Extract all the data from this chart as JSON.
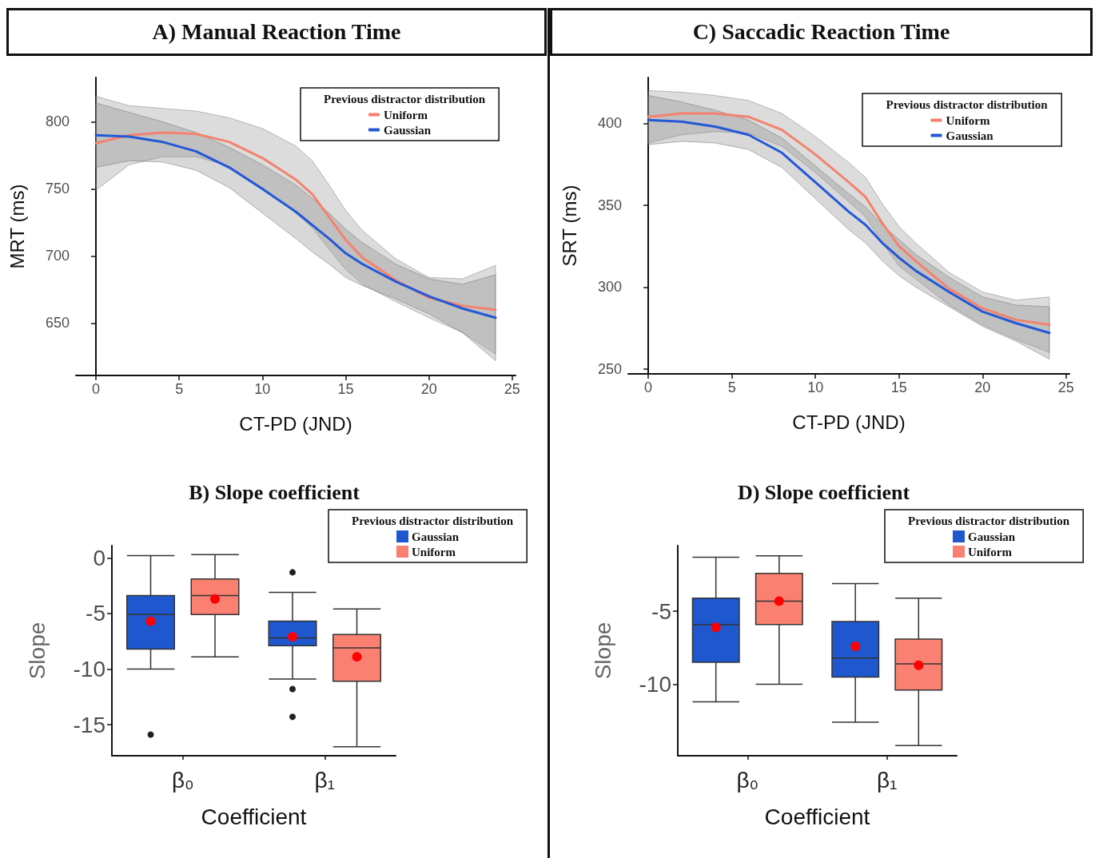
{
  "chart_data": [
    {
      "type": "line",
      "title": "A) Manual Reaction Time",
      "xlabel": "CT-PD (JND)",
      "ylabel": "MRT (ms)",
      "legend_title": "Previous distractor distribution",
      "legend": "top right",
      "x": [
        0,
        2,
        4,
        6,
        8,
        10,
        12,
        13,
        14,
        15,
        16,
        18,
        20,
        22,
        24
      ],
      "xlim": [
        -1.2,
        25.2
      ],
      "xticks": [
        0,
        5,
        10,
        15,
        20,
        25
      ],
      "ylim": [
        611,
        833
      ],
      "yticks": [
        650,
        700,
        750,
        800
      ],
      "series": [
        {
          "name": "Uniform",
          "color": "#f4826e",
          "values": [
            784,
            790,
            792,
            791,
            785,
            773,
            757,
            746,
            729,
            712,
            699,
            682,
            669,
            663,
            660
          ],
          "upper": [
            819,
            812,
            810,
            808,
            803,
            795,
            782,
            771,
            753,
            734,
            719,
            698,
            684,
            683,
            693
          ],
          "lower": [
            749,
            768,
            774,
            774,
            767,
            751,
            732,
            721,
            705,
            690,
            679,
            666,
            654,
            643,
            627
          ]
        },
        {
          "name": "Gaussian",
          "color": "#2358d6",
          "values": [
            790,
            789,
            785,
            778,
            766,
            750,
            733,
            723,
            713,
            702,
            694,
            681,
            670,
            661,
            654
          ],
          "upper": [
            814,
            807,
            800,
            792,
            781,
            768,
            753,
            743,
            732,
            720,
            710,
            694,
            683,
            679,
            686
          ],
          "lower": [
            766,
            771,
            770,
            764,
            751,
            732,
            713,
            703,
            694,
            684,
            678,
            668,
            657,
            643,
            622
          ]
        }
      ]
    },
    {
      "type": "line",
      "title": "C) Saccadic Reaction Time",
      "xlabel": "CT-PD (JND)",
      "ylabel": "SRT (ms)",
      "legend_title": "Previous distractor distribution",
      "legend": "top right",
      "x": [
        0,
        2,
        4,
        6,
        8,
        10,
        12,
        13,
        14,
        15,
        16,
        18,
        20,
        22,
        24
      ],
      "xlim": [
        -1.2,
        25.2
      ],
      "xticks": [
        0,
        5,
        10,
        15,
        20,
        25
      ],
      "ylim": [
        247,
        428
      ],
      "yticks": [
        250,
        300,
        350,
        400
      ],
      "series": [
        {
          "name": "Uniform",
          "color": "#f4826e",
          "values": [
            404,
            406,
            406,
            404,
            396,
            381,
            364,
            355,
            339,
            325,
            316,
            299,
            287,
            280,
            277
          ],
          "upper": [
            420,
            419,
            417,
            414,
            406,
            392,
            376,
            367,
            351,
            337,
            327,
            309,
            297,
            292,
            294
          ],
          "lower": [
            388,
            393,
            395,
            394,
            386,
            370,
            352,
            343,
            327,
            313,
            305,
            289,
            277,
            268,
            260
          ]
        },
        {
          "name": "Gaussian",
          "color": "#2358d6",
          "values": [
            402,
            401,
            398,
            393,
            382,
            364,
            346,
            338,
            327,
            318,
            310,
            297,
            285,
            278,
            272
          ],
          "upper": [
            417,
            413,
            408,
            402,
            391,
            374,
            357,
            349,
            338,
            329,
            320,
            306,
            294,
            289,
            288
          ],
          "lower": [
            387,
            389,
            388,
            384,
            373,
            354,
            335,
            327,
            316,
            307,
            300,
            288,
            276,
            267,
            256
          ]
        }
      ]
    },
    {
      "type": "box",
      "title": "B) Slope coefficient",
      "xlabel": "Coefficient",
      "ylabel": "Slope",
      "legend_title": "Previous distractor distribution",
      "legend": "top right",
      "categories": [
        "β₀",
        "β₁"
      ],
      "ylim": [
        -17.8,
        1.1
      ],
      "yticks": [
        -15,
        -10,
        -5,
        0
      ],
      "series": [
        {
          "name": "Gaussian",
          "color": "#1f57cf",
          "boxes": [
            {
              "low": -10,
              "q1": -8.2,
              "median": -5.1,
              "q3": -3.4,
              "high": 0.2,
              "mean": -5.7,
              "outliers": [
                -15.9
              ]
            },
            {
              "low": -10.9,
              "q1": -7.9,
              "median": -7.2,
              "q3": -5.7,
              "high": -3.1,
              "mean": -7.1,
              "outliers": [
                -1.3,
                -11.8,
                -14.3
              ]
            }
          ]
        },
        {
          "name": "Uniform",
          "color": "#fa8072",
          "boxes": [
            {
              "low": -8.9,
              "q1": -5.1,
              "median": -3.4,
              "q3": -1.9,
              "high": 0.3,
              "mean": -3.7
            },
            {
              "low": -17,
              "q1": -11.1,
              "median": -8.1,
              "q3": -6.9,
              "high": -4.6,
              "mean": -8.9
            }
          ]
        }
      ]
    },
    {
      "type": "box",
      "title": "D) Slope coefficient",
      "xlabel": "Coefficient",
      "ylabel": "Slope",
      "legend_title": "Previous distractor distribution",
      "legend": "top right",
      "categories": [
        "β₀",
        "β₁"
      ],
      "ylim": [
        -14.9,
        -0.5
      ],
      "yticks": [
        -10,
        -5
      ],
      "series": [
        {
          "name": "Gaussian",
          "color": "#1f57cf",
          "boxes": [
            {
              "low": -11.2,
              "q1": -8.5,
              "median": -5.9,
              "q3": -4.1,
              "high": -1.3,
              "mean": -6.1
            },
            {
              "low": -12.6,
              "q1": -9.5,
              "median": -8.2,
              "q3": -5.7,
              "high": -3.1,
              "mean": -7.4
            }
          ]
        },
        {
          "name": "Uniform",
          "color": "#fa8072",
          "boxes": [
            {
              "low": -10,
              "q1": -5.9,
              "median": -4.3,
              "q3": -2.4,
              "high": -1.2,
              "mean": -4.3
            },
            {
              "low": -14.2,
              "q1": -10.4,
              "median": -8.6,
              "q3": -6.9,
              "high": -4.1,
              "mean": -8.7
            }
          ]
        }
      ]
    }
  ]
}
